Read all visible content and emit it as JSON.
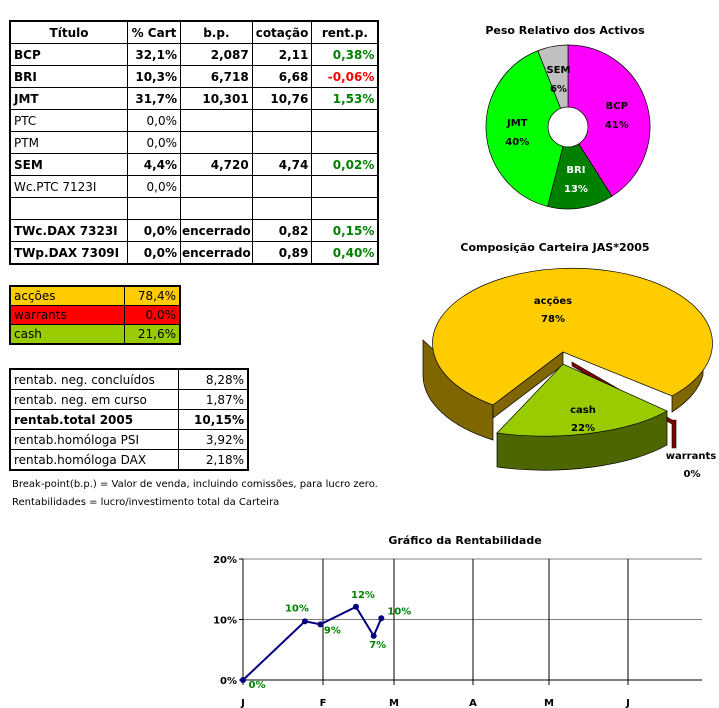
{
  "holdings": {
    "headers": [
      "Título",
      "% Cart",
      "b.p.",
      "cotação",
      "rent.p."
    ],
    "rows": [
      {
        "titulo": "BCP",
        "cart": "32,1%",
        "bp": "2,087",
        "cot": "2,11",
        "rent": "0,38%",
        "bold": true
      },
      {
        "titulo": "BRI",
        "cart": "10,3%",
        "bp": "6,718",
        "cot": "6,68",
        "rent": "-0,06%",
        "bold": true
      },
      {
        "titulo": "JMT",
        "cart": "31,7%",
        "bp": "10,301",
        "cot": "10,76",
        "rent": "1,53%",
        "bold": true
      },
      {
        "titulo": "PTC",
        "cart": "0,0%",
        "bp": "",
        "cot": "",
        "rent": "",
        "bold": false
      },
      {
        "titulo": "PTM",
        "cart": "0,0%",
        "bp": "",
        "cot": "",
        "rent": "",
        "bold": false
      },
      {
        "titulo": "SEM",
        "cart": "4,4%",
        "bp": "4,720",
        "cot": "4,74",
        "rent": "0,02%",
        "bold": true
      },
      {
        "titulo": "Wc.PTC 7123I",
        "cart": "0,0%",
        "bp": "",
        "cot": "",
        "rent": "",
        "bold": false
      },
      {
        "titulo": "",
        "cart": "",
        "bp": "",
        "cot": "",
        "rent": "",
        "bold": false
      },
      {
        "titulo": "TWc.DAX 7323I",
        "cart": "0,0%",
        "bp": "encerrado",
        "cot": "0,82",
        "rent": "0,15%",
        "bold": true
      },
      {
        "titulo": "TWp.DAX 7309I",
        "cart": "0,0%",
        "bp": "encerrado",
        "cot": "0,89",
        "rent": "0,40%",
        "bold": true
      }
    ]
  },
  "allocation": [
    {
      "label": "acções",
      "value": "78,4%",
      "color": "#ffcc00"
    },
    {
      "label": "warrants",
      "value": "0,0%",
      "color": "#ff0000"
    },
    {
      "label": "cash",
      "value": "21,6%",
      "color": "#99cc00"
    }
  ],
  "returns": [
    {
      "label": "rentab. neg. concluídos",
      "value": "8,28%"
    },
    {
      "label": "rentab. neg. em curso",
      "value": "1,87%"
    },
    {
      "label": "rentab.total 2005",
      "value": "10,15%",
      "bold": true
    },
    {
      "label": "rentab.homóloga PSI",
      "value": "3,92%"
    },
    {
      "label": "rentab.homóloga DAX",
      "value": "2,18%"
    }
  ],
  "notes": [
    "Break-point(b.p.) = Valor de venda, incluindo comissões, para lucro zero.",
    "Rentabilidades = lucro/investimento total da Carteira"
  ],
  "chart_data": [
    {
      "type": "pie",
      "title": "Peso Relativo dos Activos",
      "labels": [
        "BCP",
        "BRI",
        "JMT",
        "SEM"
      ],
      "values": [
        41,
        13,
        40,
        6
      ],
      "colors": [
        "#ff00ff",
        "#008000",
        "#00ff00",
        "#c0c0c0"
      ]
    },
    {
      "type": "pie",
      "title": "Composição Carteira JAS*2005",
      "labels": [
        "acções",
        "cash",
        "warrants"
      ],
      "values": [
        78,
        22,
        0
      ],
      "colors": [
        "#ffcc00",
        "#99cc00",
        "#800000"
      ]
    },
    {
      "type": "line",
      "title": "Gráfico da Rentabilidade",
      "x": [
        "2005-01-01",
        "2005-01-25",
        "2005-01-31",
        "2005-02-14",
        "2005-02-21",
        "2005-02-24"
      ],
      "values": [
        0,
        9.7,
        9.2,
        12.1,
        7.3,
        10.2
      ],
      "data_labels": [
        "0%",
        "10%",
        "9%",
        "12%",
        "7%",
        "10%"
      ],
      "xticks": [
        "J",
        "F",
        "M",
        "A",
        "M",
        "J"
      ],
      "yticks": [
        "0%",
        "10%",
        "20%"
      ],
      "ylim": [
        0,
        20
      ],
      "grid": true,
      "line_color": "#000080",
      "label_color": "#008000"
    }
  ]
}
